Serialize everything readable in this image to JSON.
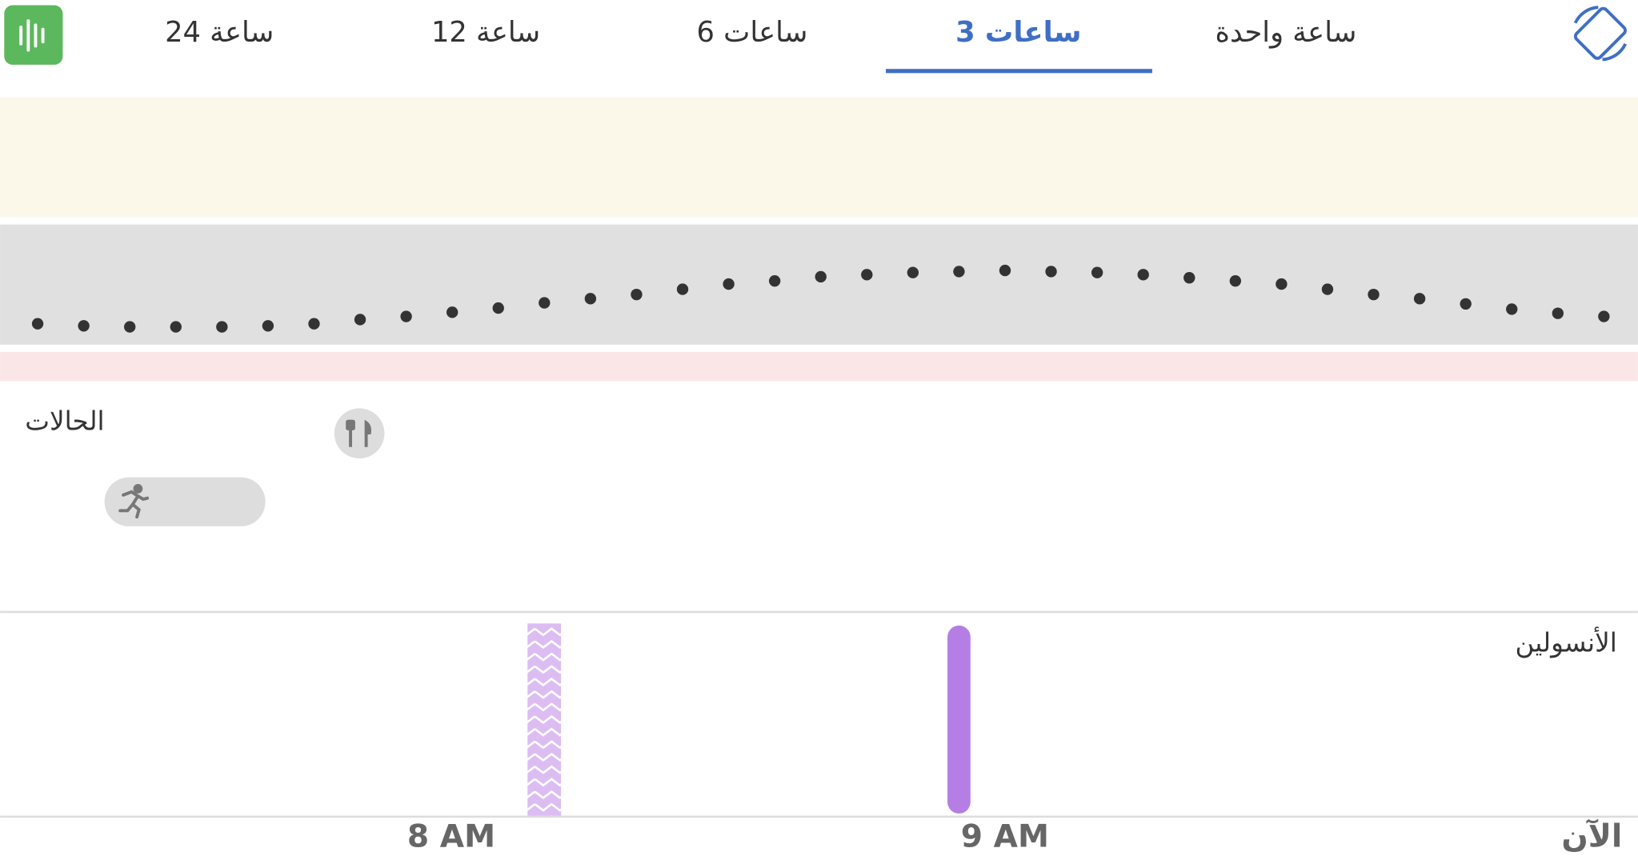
{
  "tabs": [
    "24 ساعة",
    "12 ساعة",
    "6 ساعات",
    "3 ساعات",
    "ساعة واحدة"
  ],
  "active_tab": 3,
  "sections": {
    "events": "الحالات",
    "insulin": "الأنسولين"
  },
  "time_axis": {
    "labels": [
      "8 AM",
      "9 AM",
      "الآن"
    ]
  }
}
